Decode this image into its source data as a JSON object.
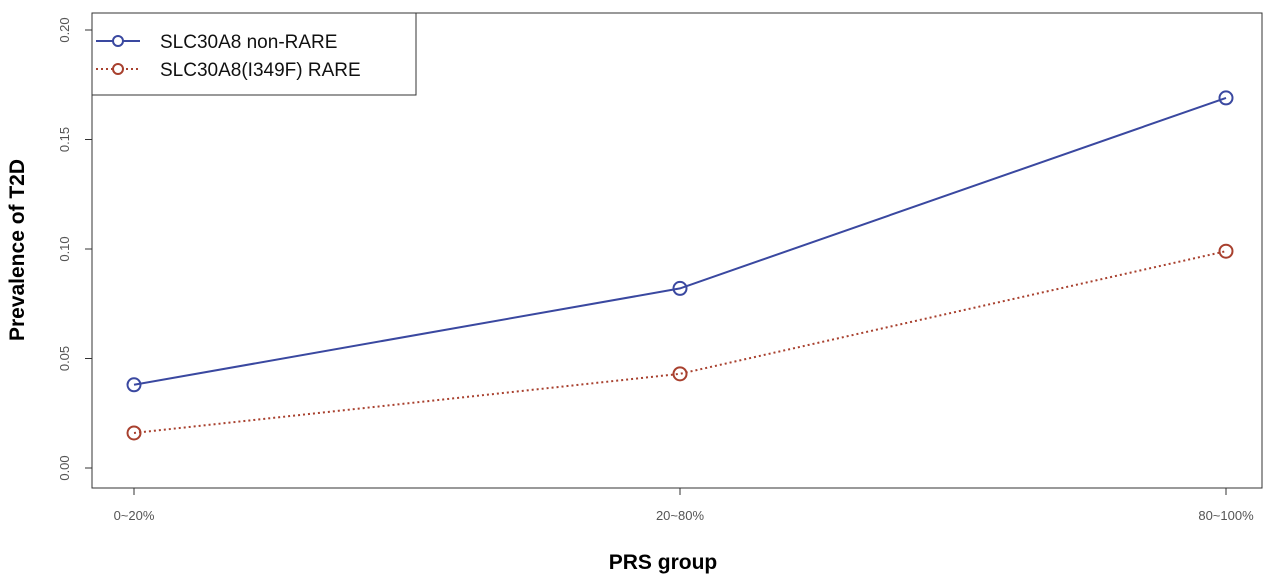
{
  "chart_data": {
    "type": "line",
    "title": "",
    "xlabel": "PRS group",
    "ylabel": "Prevalence of T2D",
    "categories": [
      "0~20%",
      "20~80%",
      "80~100%"
    ],
    "ylim": [
      0,
      0.2
    ],
    "yticks": [
      "0.00",
      "0.05",
      "0.10",
      "0.15",
      "0.20"
    ],
    "yticks_values": [
      0,
      0.05,
      0.1,
      0.15,
      0.2
    ],
    "grid": false,
    "legend_position": "top-left",
    "series": [
      {
        "name": "SLC30A8 non-RARE",
        "values": [
          0.038,
          0.082,
          0.169
        ],
        "color": "#3a48a0",
        "line_style": "solid",
        "marker": "open-circle"
      },
      {
        "name": "SLC30A8(I349F) RARE",
        "values": [
          0.016,
          0.043,
          0.099
        ],
        "color": "#a8402e",
        "line_style": "dotted",
        "marker": "open-circle"
      }
    ]
  }
}
